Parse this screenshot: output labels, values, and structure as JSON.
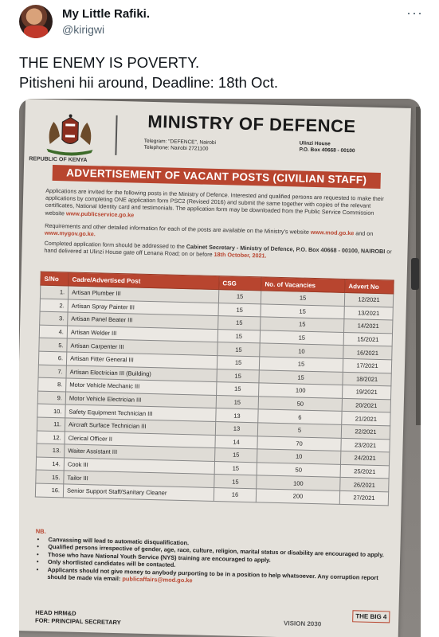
{
  "tweet": {
    "name": "My Little Rafiki.",
    "handle": "@kirigwi",
    "more": "···",
    "lines": [
      "THE ENEMY IS POVERTY.",
      "Pitisheni hii around, Deadline: 18th Oct."
    ]
  },
  "doc": {
    "emblem_label": "REPUBLIC OF KENYA",
    "title": "MINISTRY OF DEFENCE",
    "telegram": "Telegram: \"DEFENCE\", Nairobi",
    "telephone": "Telephone: Nairobi 2721100",
    "address1": "Ulinzi House",
    "address2": "P.O. Box 40668 - 00100",
    "banner": "ADVERTISEMENT OF VACANT POSTS (CIVILIAN STAFF)",
    "intro": "Applications are invited for the following posts in the Ministry of Defence. Interested and qualified persons are requested to make their applications by completing ONE application form PSC2 (Revised 2016) and submit the same together with copies of the relevant certificates, National Identity card and testimonials. The application form may be downloaded from the Public Service Commission website",
    "intro_link": "www.publicservice.go.ke",
    "req_text": "Requirements and other detailed information for each of the posts are available on the Ministry's website",
    "req_link1": "www.mod.go.ke",
    "req_and": "and on",
    "req_link2": "www.mygov.go.ke.",
    "addr_text": "Completed application form should be addressed to the",
    "addr_bold": "Cabinet Secretary - Ministry of Defence, P.O. Box 40668 - 00100, NAIROBI",
    "addr_rest": "or hand delivered at Ulinzi House gate off Lenana Road; on or before",
    "deadline": "18th October, 2021.",
    "headers": [
      "S/No",
      "Cadre/Advertised Post",
      "CSG",
      "No. of Vacancies",
      "Advert No"
    ],
    "rows": [
      [
        "1.",
        "Artisan Plumber III",
        "15",
        "15",
        "12/2021"
      ],
      [
        "2.",
        "Artisan Spray Painter III",
        "15",
        "15",
        "13/2021"
      ],
      [
        "3.",
        "Artisan Panel Beater III",
        "15",
        "15",
        "14/2021"
      ],
      [
        "4.",
        "Artisan Welder III",
        "15",
        "15",
        "15/2021"
      ],
      [
        "5.",
        "Artisan Carpenter III",
        "15",
        "10",
        "16/2021"
      ],
      [
        "6.",
        "Artisan Fitter General III",
        "15",
        "15",
        "17/2021"
      ],
      [
        "7.",
        "Artisan Electrician III (Building)",
        "15",
        "15",
        "18/2021"
      ],
      [
        "8.",
        "Motor Vehicle Mechanic III",
        "15",
        "100",
        "19/2021"
      ],
      [
        "9.",
        "Motor Vehicle Electrician III",
        "15",
        "50",
        "20/2021"
      ],
      [
        "10.",
        "Safety Equipment Technician III",
        "13",
        "6",
        "21/2021"
      ],
      [
        "11.",
        "Aircraft Surface Technician III",
        "13",
        "5",
        "22/2021"
      ],
      [
        "12.",
        "Clerical Officer II",
        "14",
        "70",
        "23/2021"
      ],
      [
        "13.",
        "Waiter Assistant III",
        "15",
        "10",
        "24/2021"
      ],
      [
        "14.",
        "Cook III",
        "15",
        "50",
        "25/2021"
      ],
      [
        "15.",
        "Tailor III",
        "15",
        "100",
        "26/2021"
      ],
      [
        "16.",
        "Senior Support Staff/Sanitary Cleaner",
        "16",
        "200",
        "27/2021"
      ]
    ],
    "nb": "NB.",
    "notes": [
      "Canvassing will lead to automatic disqualification.",
      "Qualified persons irrespective of gender, age, race, culture, religion, marital status or disability are encouraged to apply.",
      "Those who have National Youth Service (NYS) training are encouraged to apply.",
      "Only shortlisted candidates will be contacted.",
      "Applicants should not give money to anybody purporting to be in a position to help whatsoever. Any corruption report should be made via email:"
    ],
    "email": "publicaffairs@mod.go.ke",
    "sig1": "HEAD HRM&D",
    "sig2": "FOR: PRINCIPAL SECRETARY",
    "vision": "VISION 2030",
    "big": "THE BIG 4"
  },
  "colors": {
    "accent": "#b8452f",
    "paper": "#e4e1db"
  }
}
